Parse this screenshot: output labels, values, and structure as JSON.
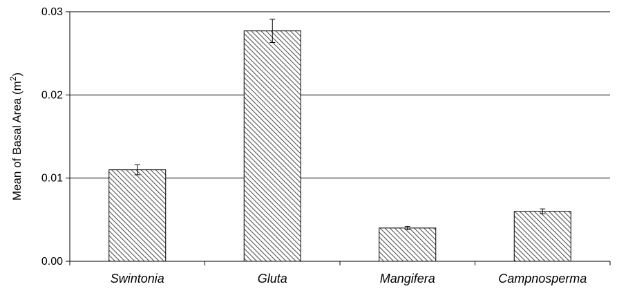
{
  "chart_data": {
    "type": "bar",
    "title": "",
    "xlabel": "",
    "ylabel": "Mean of Basal Area (m",
    "ylabel_sup": "2",
    "ylabel_end": ")",
    "categories": [
      "Swintonia",
      "Gluta",
      "Mangifera",
      "Campnosperma"
    ],
    "values": [
      0.011,
      0.0277,
      0.004,
      0.006
    ],
    "error": [
      0.0006,
      0.0014,
      0.0002,
      0.0003
    ],
    "ylim": [
      0,
      0.03
    ],
    "yticks": [
      0,
      0.01,
      0.02,
      0.03
    ],
    "ytick_labels": [
      "0.00",
      "0.01",
      "0.02",
      "0.03"
    ],
    "grid": true,
    "legend": "none",
    "bar_fill": "diagonal-hatch",
    "colors": {
      "bar_stroke": "#000000",
      "hatch_line": "#555555",
      "hatch_bg": "#ffffff",
      "grid": "#000000",
      "axis": "#000000"
    }
  }
}
